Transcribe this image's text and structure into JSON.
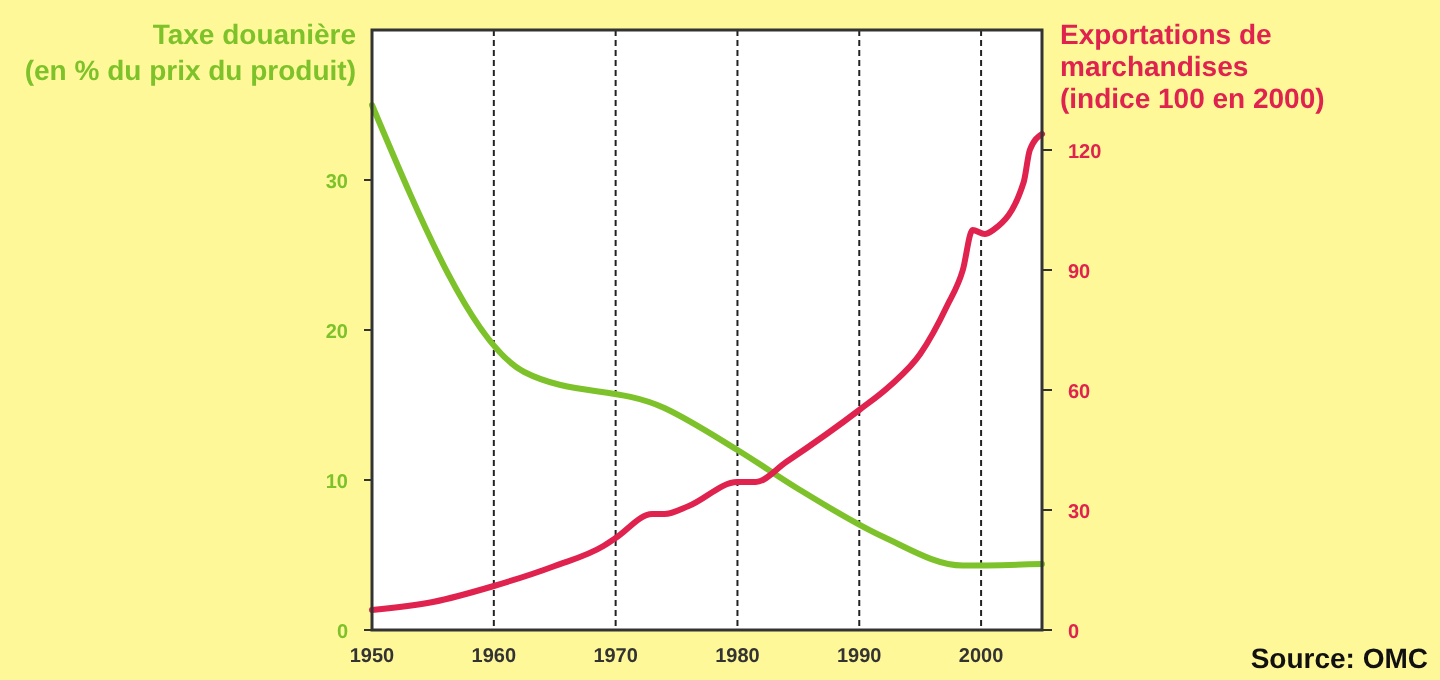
{
  "chart_data": {
    "type": "line",
    "ylabel": "Taxe douanière\n(en % du prix du produit)",
    "y2label": "Exportations de\nmarchandises\n(indice 100 en 2000)",
    "xlim": [
      1950,
      2005
    ],
    "xticks": [
      1950,
      1960,
      1970,
      1980,
      1990,
      2000
    ],
    "ylim": [
      0,
      40
    ],
    "yticks": [
      0,
      10,
      20,
      30
    ],
    "y2lim": [
      0,
      150
    ],
    "y2ticks": [
      0,
      30,
      60,
      90,
      120
    ],
    "grid": "x",
    "line_style": "solid",
    "marker": "none",
    "annotations": [
      "Source: OMC"
    ],
    "series": [
      {
        "color": "#7dc22a",
        "x": [
          1950,
          1962.5,
          1974,
          1980,
          1985,
          1992,
          1998.5,
          2005
        ],
        "values": [
          35,
          17.2,
          14.8,
          12,
          9.4,
          6.2,
          4.3,
          4.4
        ]
      },
      {
        "color": "#e0224e",
        "axis": "y2",
        "x": [
          1950,
          1955,
          1960,
          1965,
          1969,
          1970,
          1973,
          1974,
          1976,
          1980,
          1981.5,
          1984,
          1990,
          1992.5,
          1995,
          1997.2,
          1998.5,
          1999.3,
          2000.3,
          2001,
          2003.5,
          2004,
          2005
        ],
        "values": [
          5,
          7,
          11,
          16,
          21,
          23,
          29,
          29,
          31,
          37,
          37,
          42,
          55,
          61,
          69,
          81,
          90,
          100,
          99,
          100,
          112,
          120,
          124
        ]
      }
    ]
  }
}
